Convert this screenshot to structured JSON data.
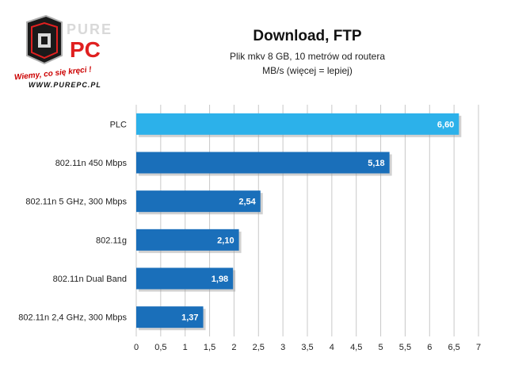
{
  "logo": {
    "brand_top": "PURE",
    "brand_bottom": "PC",
    "tagline": "Wiemy, co się kręci !",
    "url": "WWW.PUREPC.PL"
  },
  "chart_data": {
    "type": "bar",
    "orientation": "horizontal",
    "title": "Download, FTP",
    "subtitle_lines": [
      "Plik mkv 8 GB, 10 metrów  od routera",
      "MB/s (więcej = lepiej)"
    ],
    "categories": [
      "PLC",
      "802.11n 450 Mbps",
      "802.11n 5 GHz, 300 Mbps",
      "802.11g",
      "802.11n Dual Band",
      "802.11n 2,4 GHz, 300 Mbps"
    ],
    "values": [
      6.6,
      5.18,
      2.54,
      2.1,
      1.98,
      1.37
    ],
    "value_labels": [
      "6,60",
      "5,18",
      "2,54",
      "2,10",
      "1,98",
      "1,37"
    ],
    "xlim": [
      0,
      7
    ],
    "ticks": [
      "0",
      "0,5",
      "1",
      "1,5",
      "2",
      "2,5",
      "3",
      "3,5",
      "4",
      "4,5",
      "5",
      "5,5",
      "6",
      "6,5",
      "7"
    ],
    "grid": true,
    "colors": {
      "highlight": "#2cb1ea",
      "bar": "#1a6fba",
      "grid": "#c8c8c8"
    }
  }
}
